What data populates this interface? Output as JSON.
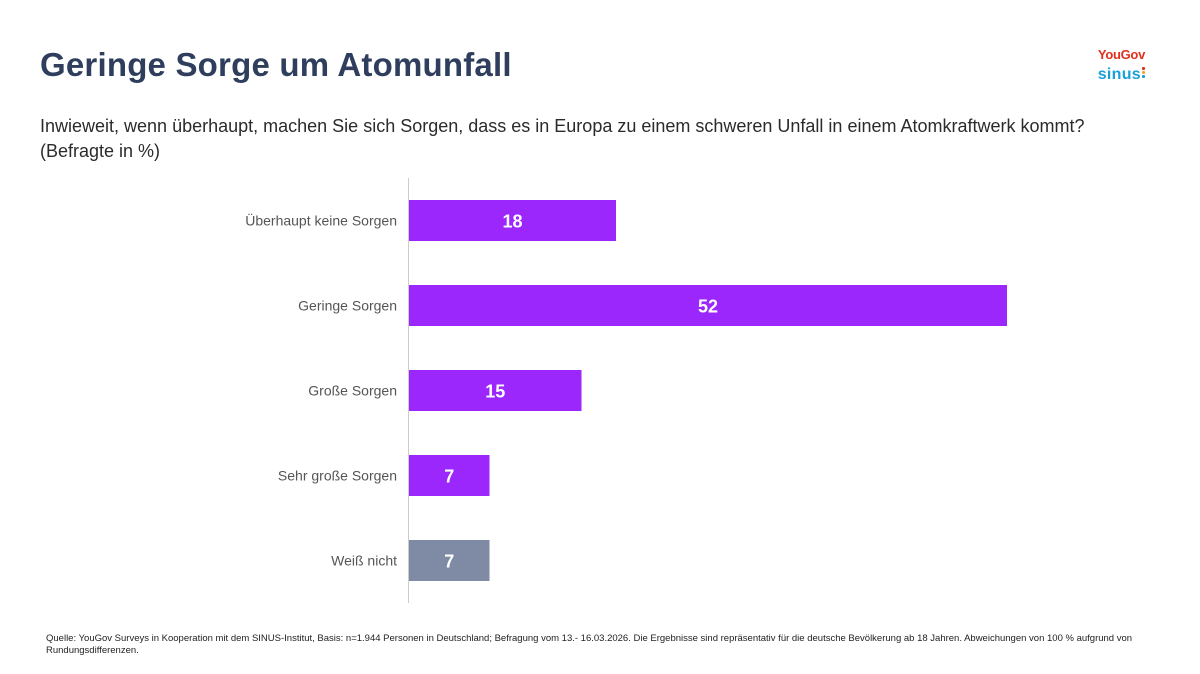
{
  "title": "Geringe Sorge um Atomunfall",
  "subtitle": "Inwieweit, wenn überhaupt, machen Sie sich Sorgen, dass es in Europa zu einem schweren Unfall in einem Atomkraftwerk kommt? (Befragte in %)",
  "logos": {
    "yougov": "YouGov",
    "sinus": "sinus"
  },
  "colors": {
    "primary_bar": "#9b27fd",
    "neutral_bar": "#7f8ba5",
    "title": "#2e3e5c",
    "axis": "#cccccc",
    "sinus_dots": [
      "#e0301e",
      "#f5a623",
      "#1aa0d8"
    ]
  },
  "chart_data": {
    "type": "bar",
    "orientation": "horizontal",
    "categories": [
      "Überhaupt keine Sorgen",
      "Geringe Sorgen",
      "Große Sorgen",
      "Sehr große Sorgen",
      "Weiß nicht"
    ],
    "values": [
      18,
      52,
      15,
      7,
      7
    ],
    "value_labels": [
      "18",
      "52",
      "15",
      "7",
      "7"
    ],
    "bar_colors": [
      "#9b27fd",
      "#9b27fd",
      "#9b27fd",
      "#9b27fd",
      "#7f8ba5"
    ],
    "xlim": [
      0,
      52
    ],
    "grid": false,
    "legend": "none"
  },
  "footnote": "Quelle: YouGov Surveys in Kooperation mit dem SINUS-Institut, Basis: n=1.944 Personen in Deutschland; Befragung vom 13.- 16.03.2026. Die Ergebnisse sind repräsentativ für die deutsche Bevölkerung ab 18 Jahren. Abweichungen von 100 % aufgrund von Rundungsdifferenzen."
}
